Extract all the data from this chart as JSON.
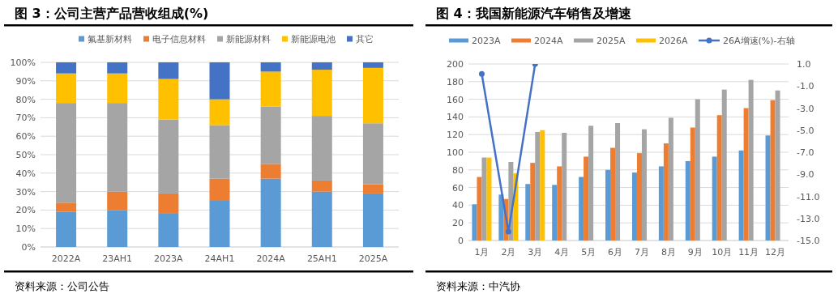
{
  "chart_data": [
    {
      "type": "bar",
      "title": "图 3：公司主营产品营收组成(%)",
      "stacked": true,
      "grid": "y",
      "legend": "top",
      "categories": [
        "2022A",
        "23AH1",
        "2023A",
        "24AH1",
        "2024A",
        "25AH1",
        "2025A"
      ],
      "series": [
        {
          "name": "氟基新材料",
          "color": "#5b9bd5",
          "values": [
            19,
            20,
            18,
            25,
            37,
            30,
            29
          ]
        },
        {
          "name": "电子信息材料",
          "color": "#ed7d31",
          "values": [
            5,
            10,
            11,
            12,
            8,
            6,
            5
          ]
        },
        {
          "name": "新能源材料",
          "color": "#a5a5a5",
          "values": [
            54,
            48,
            40,
            29,
            31,
            35,
            33
          ]
        },
        {
          "name": "新能源电池",
          "color": "#ffc000",
          "values": [
            16,
            16,
            22,
            14,
            19,
            25,
            30
          ]
        },
        {
          "name": "其它",
          "color": "#4472c4",
          "values": [
            6,
            6,
            9,
            20,
            5,
            4,
            3
          ]
        }
      ],
      "ylim": [
        0,
        100
      ],
      "yticks": [
        {
          "value": 0,
          "label": "0%"
        },
        {
          "value": 10,
          "label": "10%"
        },
        {
          "value": 20,
          "label": "20%"
        },
        {
          "value": 30,
          "label": "30%"
        },
        {
          "value": 40,
          "label": "40%"
        },
        {
          "value": 50,
          "label": "50%"
        },
        {
          "value": 60,
          "label": "60%"
        },
        {
          "value": 70,
          "label": "70%"
        },
        {
          "value": 80,
          "label": "80%"
        },
        {
          "value": 90,
          "label": "90%"
        },
        {
          "value": 100,
          "label": "100%"
        }
      ],
      "annotations": [
        "资料来源：公司公告"
      ]
    },
    {
      "type": "bar",
      "title": "图 4：我国新能源汽车销售及增速",
      "grid": "y",
      "legend": "top",
      "categories": [
        "1月",
        "2月",
        "3月",
        "4月",
        "5月",
        "6月",
        "7月",
        "8月",
        "9月",
        "10月",
        "11月",
        "12月"
      ],
      "series": [
        {
          "name": "2023A",
          "color": "#5b9bd5",
          "values": [
            41,
            52,
            64,
            63,
            72,
            80,
            77,
            84,
            90,
            95,
            102,
            119
          ]
        },
        {
          "name": "2024A",
          "color": "#ed7d31",
          "values": [
            72,
            47,
            88,
            84,
            95,
            105,
            99,
            110,
            128,
            142,
            150,
            159
          ]
        },
        {
          "name": "2025A",
          "color": "#a5a5a5",
          "values": [
            94,
            89,
            123,
            122,
            130,
            133,
            126,
            139,
            160,
            171,
            182,
            170
          ]
        },
        {
          "name": "2026A",
          "color": "#ffc000",
          "values": [
            94,
            76,
            125,
            null,
            null,
            null,
            null,
            null,
            null,
            null,
            null,
            null
          ]
        },
        {
          "name": "26A增速(%)-右轴",
          "color": "#4472c4",
          "type": "line",
          "axis": "y2",
          "marker": "circle",
          "values": [
            0.1,
            -14.2,
            1.0,
            null,
            null,
            null,
            null,
            null,
            null,
            null,
            null,
            null
          ]
        }
      ],
      "ylim": [
        0,
        200
      ],
      "yticks": [
        0,
        20,
        40,
        60,
        80,
        100,
        120,
        140,
        160,
        180,
        200
      ],
      "y2lim": [
        -15,
        1
      ],
      "y2ticks": [
        {
          "value": 1,
          "label": "1.0"
        },
        {
          "value": -1,
          "label": "-1.0"
        },
        {
          "value": -3,
          "label": "-3.0"
        },
        {
          "value": -5,
          "label": "-5.0"
        },
        {
          "value": -7,
          "label": "-7.0"
        },
        {
          "value": -9,
          "label": "-9.0"
        },
        {
          "value": -11,
          "label": "-11.0"
        },
        {
          "value": -13,
          "label": "-13.0"
        },
        {
          "value": -15,
          "label": "-15.0"
        }
      ],
      "annotations": [
        "资料来源：中汽协"
      ]
    }
  ]
}
